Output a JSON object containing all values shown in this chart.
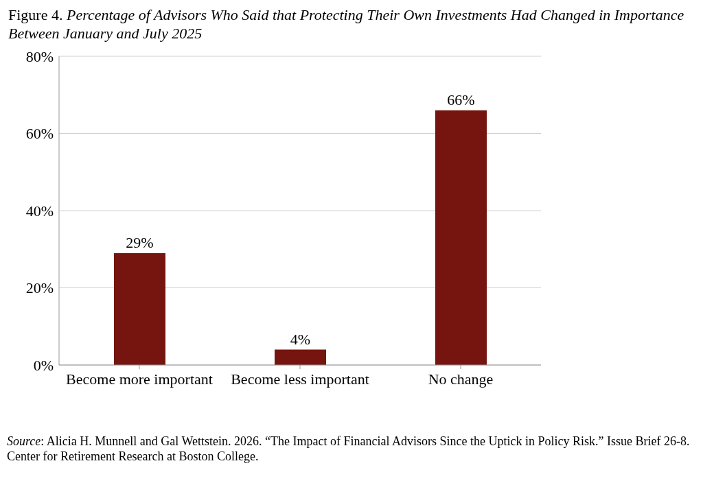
{
  "chart_data": {
    "type": "bar",
    "title": "Figure 4. Percentage of Advisors Who Said that Protecting Their Own Investments Had Changed in Importance Between January and July 2025",
    "categories": [
      "Become more important",
      "Become less important",
      "No change"
    ],
    "values": [
      29,
      4,
      66
    ],
    "color": "#76150f",
    "value_labels": [
      "29%",
      "4%",
      "66%"
    ],
    "ylim": [
      0,
      80
    ],
    "yticks": [
      {
        "value": 0,
        "label": "0%"
      },
      {
        "value": 20,
        "label": "20%"
      },
      {
        "value": 40,
        "label": "40%"
      },
      {
        "value": 60,
        "label": "60%"
      },
      {
        "value": 80,
        "label": "80%"
      }
    ],
    "grid": "y",
    "annotations": [
      "Source: Alicia H. Munnell and Gal Wettstein. 2026. “The Impact of Financial Advisors Since the Uptick in Policy Risk.” Issue Brief 26-8. Center for Retirement Research at Boston College."
    ]
  }
}
